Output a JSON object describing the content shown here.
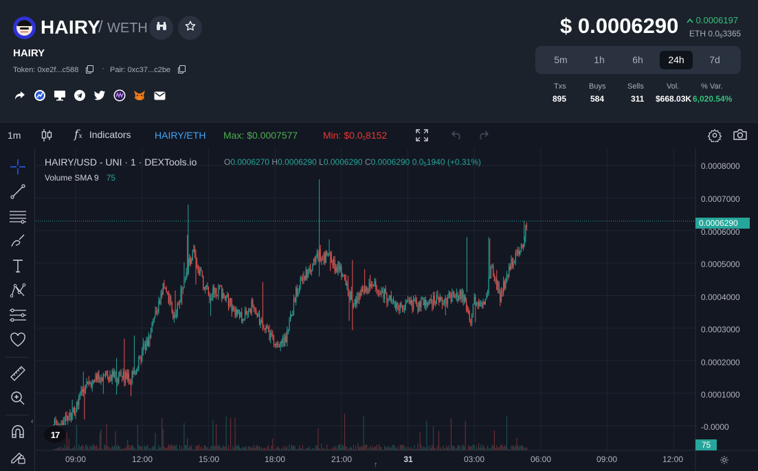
{
  "token": {
    "symbol": "HAIRY",
    "pair_quote": "WETH",
    "name": "HAIRY",
    "token_label": "Token: 0xe2f...c588",
    "pair_label": "Pair: 0xc37...c2be"
  },
  "price": {
    "usd": "$ 0.0006290",
    "change": "0.0006197",
    "eth_prefix": "ETH 0.0",
    "eth_sub": "6",
    "eth_suffix": "3365"
  },
  "timeframes": {
    "items": [
      "5m",
      "1h",
      "6h",
      "24h",
      "7d"
    ],
    "active": "24h"
  },
  "stats": {
    "headers": [
      "Txs",
      "Buys",
      "Sells",
      "Vol.",
      "% Var."
    ],
    "values": [
      "895",
      "584",
      "311",
      "$668.03K",
      "6,020.54%"
    ]
  },
  "socials": [
    "share-icon",
    "chart-logo-icon",
    "website-icon",
    "telegram-icon",
    "twitter-icon",
    "cmc-icon",
    "metamask-icon",
    "email-icon"
  ],
  "toolbar": {
    "interval": "1m",
    "indicators": "Indicators",
    "pair": "HAIRY/ETH",
    "max": "Max: $0.0007577",
    "min_prefix": "Min: $0.0",
    "min_sub": "5",
    "min_suffix": "8152"
  },
  "legend": {
    "title": "HAIRY/USD - UNI · 1 · DEXTools.io",
    "o_label": "O",
    "o": "0.0006270",
    "h_label": "H",
    "h": "0.0006290",
    "l_label": "L",
    "l": "0.0006290",
    "c_label": "C",
    "c": "0.0006290",
    "chg_prefix": "0.0",
    "chg_sub": "5",
    "chg_suffix": "1940 (+0.31%)",
    "volume_label": "Volume SMA 9",
    "volume_value": "75"
  },
  "colors": {
    "up": "#26a69a",
    "down": "#ef5350",
    "positive_text": "#34c27b",
    "max_text": "#4caf50",
    "min_text": "#e53935",
    "pair_text": "#42a5f5"
  },
  "chart_data": {
    "type": "candlestick",
    "price_tag": "0.0006290",
    "volume_tag": "75",
    "y_ticks": [
      "0.0008000",
      "0.0007000",
      "0.0006000",
      "0.0005000",
      "0.0004000",
      "0.0003000",
      "0.0002000",
      "0.0001000",
      "-0.0000"
    ],
    "x_ticks": [
      "09:00",
      "12:00",
      "15:00",
      "18:00",
      "21:00",
      "31",
      "03:00",
      "06:00",
      "09:00",
      "12:00"
    ],
    "ylim": [
      -1e-05,
      0.00082
    ],
    "close_path": [
      [
        "08:00",
        2e-06
      ],
      [
        "08:30",
        1.5e-05
      ],
      [
        "09:00",
        5e-05
      ],
      [
        "09:30",
        0.00013
      ],
      [
        "10:00",
        0.00015
      ],
      [
        "10:30",
        0.000155
      ],
      [
        "11:00",
        0.00015
      ],
      [
        "11:30",
        0.00014
      ],
      [
        "12:00",
        0.00022
      ],
      [
        "12:30",
        0.00031
      ],
      [
        "13:00",
        0.00043
      ],
      [
        "13:30",
        0.00033
      ],
      [
        "14:00",
        0.00048
      ],
      [
        "14:20",
        0.00053
      ],
      [
        "14:40",
        0.00046
      ],
      [
        "15:00",
        0.0004
      ],
      [
        "15:30",
        0.00042
      ],
      [
        "16:00",
        0.00037
      ],
      [
        "16:30",
        0.00033
      ],
      [
        "17:00",
        0.00037
      ],
      [
        "17:30",
        0.0003
      ],
      [
        "18:00",
        0.00026
      ],
      [
        "18:30",
        0.00026
      ],
      [
        "19:00",
        0.00042
      ],
      [
        "19:30",
        0.00048
      ],
      [
        "20:00",
        0.00053
      ],
      [
        "20:30",
        0.00051
      ],
      [
        "21:00",
        0.00047
      ],
      [
        "21:30",
        0.00038
      ],
      [
        "22:00",
        0.00041
      ],
      [
        "22:30",
        0.00043
      ],
      [
        "23:00",
        0.0004
      ],
      [
        "23:30",
        0.00037
      ],
      [
        "00:30",
        0.00037
      ],
      [
        "01:30",
        0.00039
      ],
      [
        "02:30",
        0.0004
      ],
      [
        "02:50",
        0.00033
      ],
      [
        "03:00",
        0.00038
      ],
      [
        "03:30",
        0.00038
      ],
      [
        "03:45",
        0.00049
      ],
      [
        "04:10",
        0.0004
      ],
      [
        "04:40",
        0.0005
      ],
      [
        "05:10",
        0.00056
      ],
      [
        "05:25",
        0.000629
      ]
    ],
    "high": "0.0007577",
    "low": "0.0000058152"
  }
}
